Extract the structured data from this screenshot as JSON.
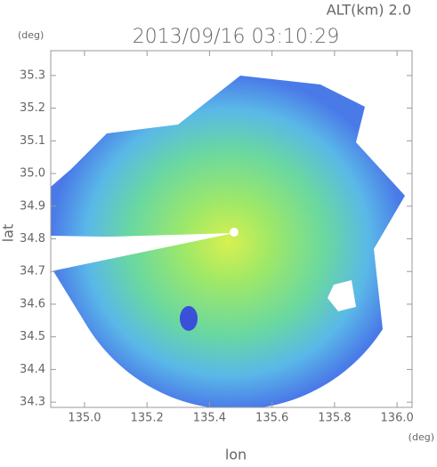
{
  "chart_data": {
    "type": "radar-map",
    "title": "2013/09/16 03:10:29",
    "annotation": "ALT(km) 2.0",
    "xlabel": "lon",
    "ylabel": "lat",
    "x_unit": "(deg)",
    "y_unit": "(deg)",
    "xlim": [
      134.892,
      136.048
    ],
    "ylim": [
      34.284,
      35.376
    ],
    "xticks": [
      {
        "value": 135,
        "label": "135.0"
      },
      135.2,
      135.4,
      135.6,
      135.8,
      {
        "value": 136,
        "label": "136.0"
      }
    ],
    "yticks": [
      34.3,
      34.4,
      34.5,
      34.6,
      34.7,
      34.8,
      34.9,
      {
        "value": 35,
        "label": "35.0"
      },
      35.1,
      35.2,
      35.3
    ]
  }
}
